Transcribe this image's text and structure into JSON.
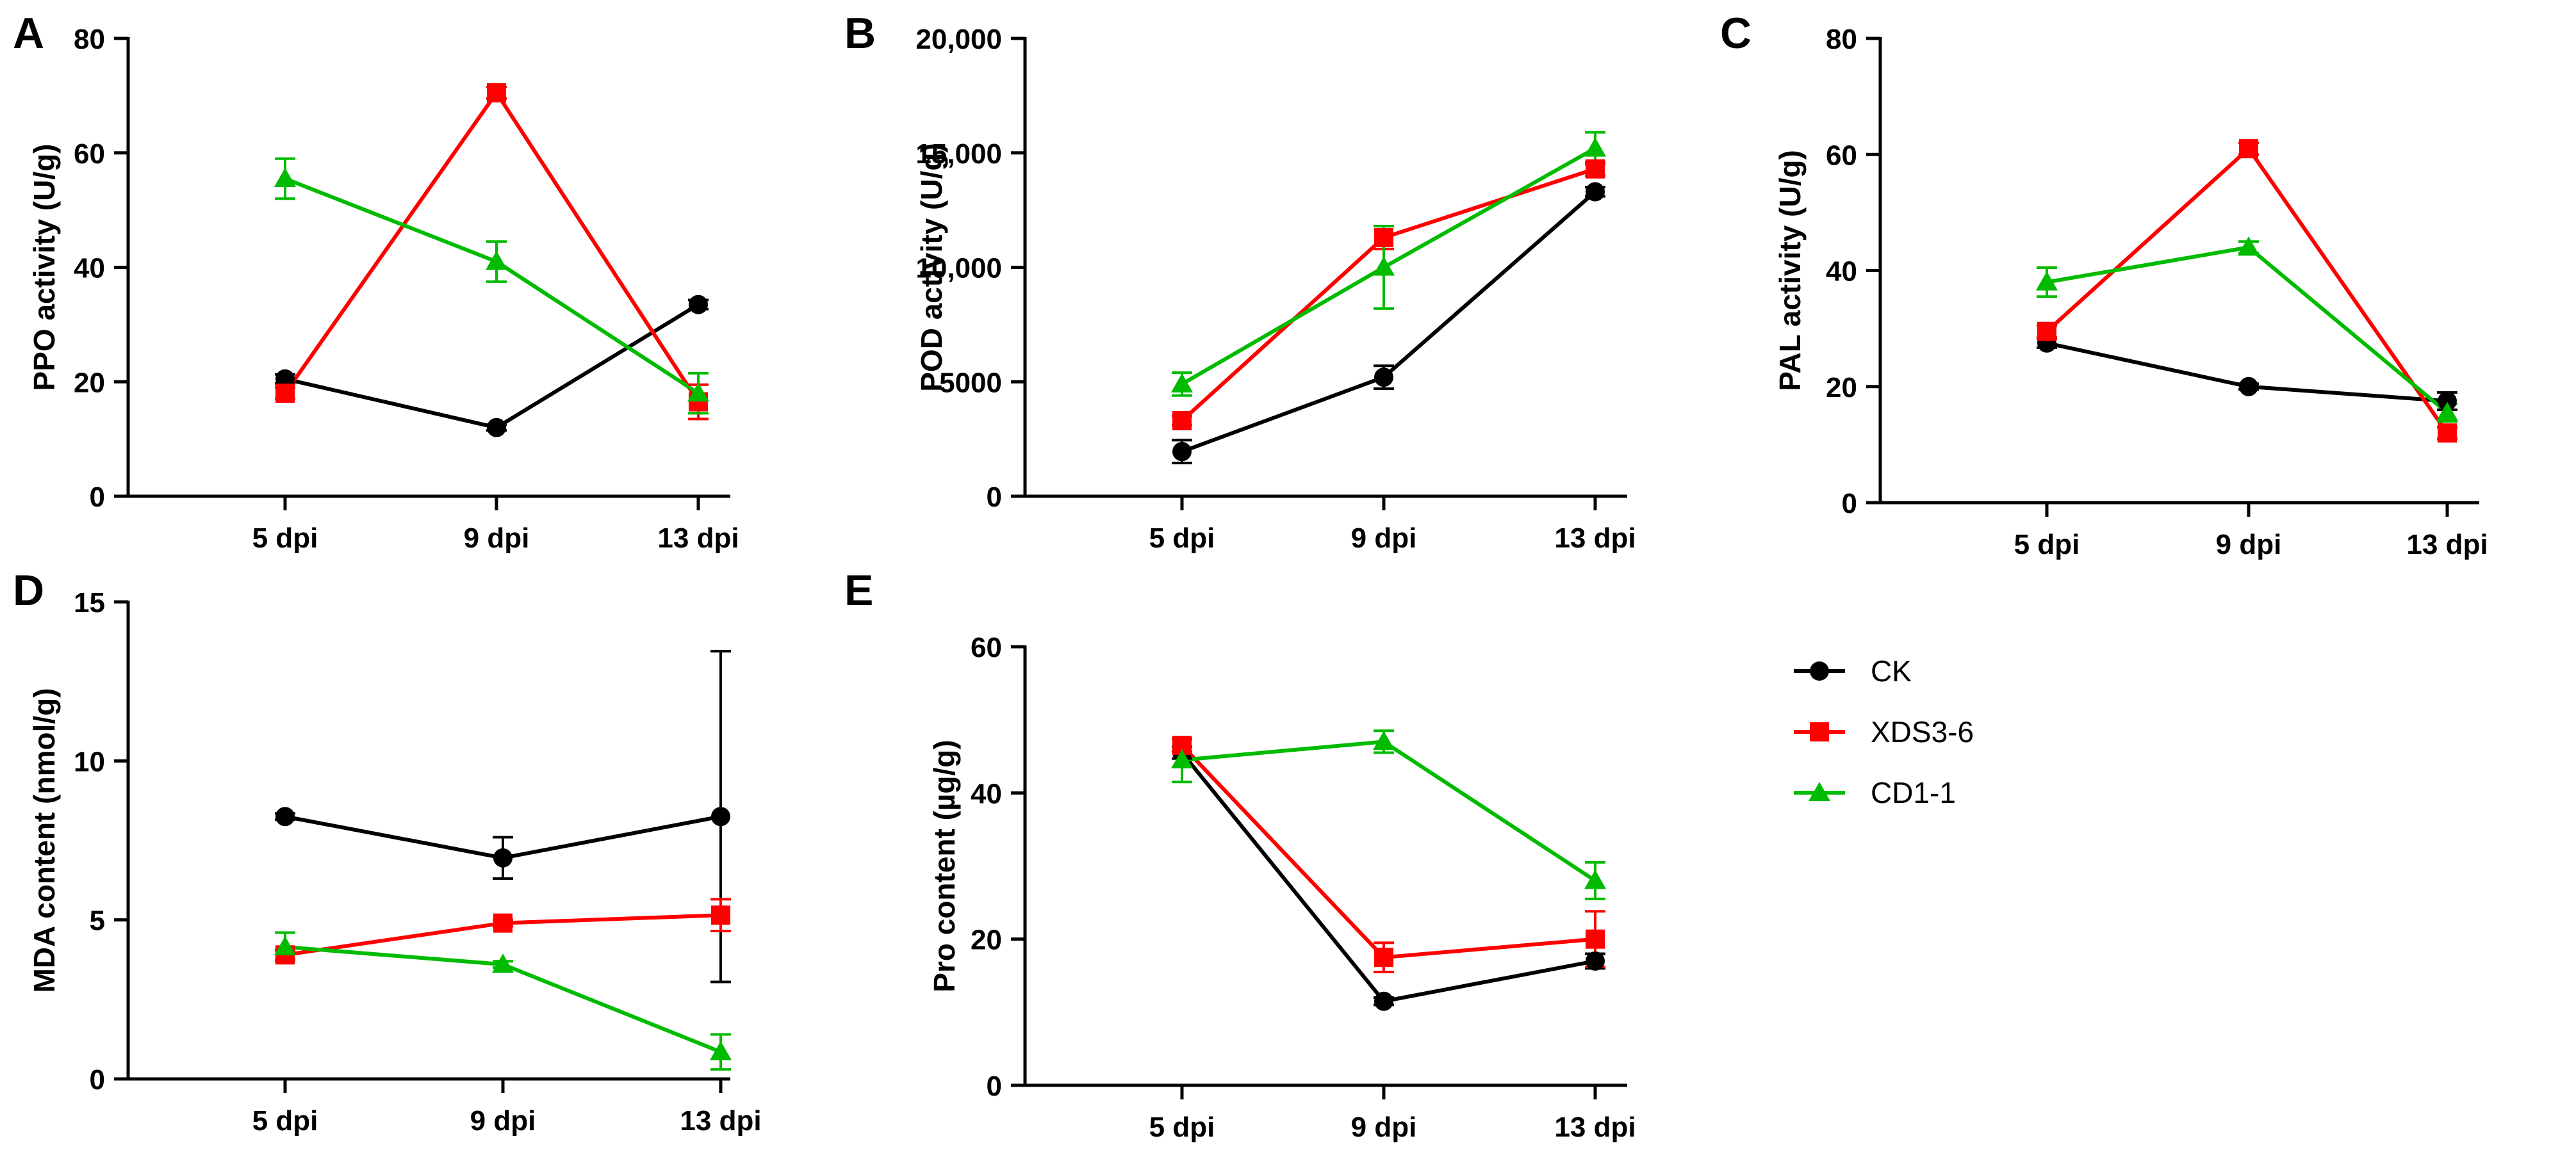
{
  "legend": {
    "entries": [
      {
        "name": "CK",
        "color": "#000000",
        "marker": "circle"
      },
      {
        "name": "XDS3-6",
        "color": "#ff0000",
        "marker": "square"
      },
      {
        "name": "CD1-1",
        "color": "#00bb00",
        "marker": "triangle"
      }
    ]
  },
  "chart_data": [
    {
      "panel": "A",
      "type": "line",
      "categories": [
        "5 dpi",
        "9 dpi",
        "13 dpi"
      ],
      "ylabel": "PPO activity (U/g)",
      "ylim": [
        0,
        80
      ],
      "yticks": [
        0,
        20,
        40,
        60,
        80
      ],
      "ytick_labels": [
        "0",
        "20",
        "40",
        "60",
        "80"
      ],
      "series": [
        {
          "name": "CK",
          "values": [
            20.5,
            12,
            33.5
          ],
          "errors": [
            0.8,
            0.5,
            0.8
          ]
        },
        {
          "name": "XDS3-6",
          "values": [
            18,
            70.5,
            16.5
          ],
          "errors": [
            1.0,
            1.0,
            3.0
          ]
        },
        {
          "name": "CD1-1",
          "values": [
            55.5,
            41,
            18
          ],
          "errors": [
            3.5,
            3.5,
            3.5
          ]
        }
      ]
    },
    {
      "panel": "B",
      "type": "line",
      "categories": [
        "5 dpi",
        "9 dpi",
        "13 dpi"
      ],
      "ylabel": "POD activity (U/g)",
      "ylim": [
        0,
        20000
      ],
      "yticks": [
        0,
        5000,
        10000,
        15000,
        20000
      ],
      "ytick_labels": [
        "0",
        "5000",
        "10,000",
        "15,000",
        "20,000"
      ],
      "series": [
        {
          "name": "CK",
          "values": [
            1950,
            5200,
            13300
          ],
          "errors": [
            500,
            500,
            200
          ]
        },
        {
          "name": "XDS3-6",
          "values": [
            3300,
            11300,
            14300
          ],
          "errors": [
            200,
            500,
            300
          ]
        },
        {
          "name": "CD1-1",
          "values": [
            4900,
            10000,
            15200
          ],
          "errors": [
            500,
            1800,
            700
          ]
        }
      ]
    },
    {
      "panel": "C",
      "type": "line",
      "categories": [
        "5 dpi",
        "9 dpi",
        "13 dpi"
      ],
      "ylabel": "PAL activity (U/g)",
      "ylim": [
        0,
        80
      ],
      "yticks": [
        0,
        20,
        40,
        60,
        80
      ],
      "ytick_labels": [
        "0",
        "20",
        "40",
        "60",
        "80"
      ],
      "series": [
        {
          "name": "CK",
          "values": [
            27.5,
            20,
            17.5
          ],
          "errors": [
            0.8,
            0.5,
            1.5
          ]
        },
        {
          "name": "XDS3-6",
          "values": [
            29.5,
            61,
            12
          ],
          "errors": [
            1.0,
            1.0,
            1.0
          ]
        },
        {
          "name": "CD1-1",
          "values": [
            38,
            44,
            15.5
          ],
          "errors": [
            2.5,
            1.0,
            1.5
          ]
        }
      ]
    },
    {
      "panel": "D",
      "type": "line",
      "categories": [
        "5 dpi",
        "9 dpi",
        "13 dpi"
      ],
      "ylabel": "MDA content (nmol/g)",
      "ylim": [
        0,
        15
      ],
      "yticks": [
        0,
        5,
        10,
        15
      ],
      "ytick_labels": [
        "0",
        "5",
        "10",
        "15"
      ],
      "series": [
        {
          "name": "CK",
          "values": [
            8.25,
            6.95,
            8.25
          ],
          "errors": [
            0.1,
            0.65,
            5.2
          ]
        },
        {
          "name": "XDS3-6",
          "values": [
            3.9,
            4.9,
            5.15
          ],
          "errors": [
            0.15,
            0.1,
            0.5
          ]
        },
        {
          "name": "CD1-1",
          "values": [
            4.15,
            3.6,
            0.85
          ],
          "errors": [
            0.45,
            0.1,
            0.55
          ]
        }
      ]
    },
    {
      "panel": "E",
      "type": "line",
      "categories": [
        "5 dpi",
        "9 dpi",
        "13 dpi"
      ],
      "ylabel": "Pro content (µg/g)",
      "ylim": [
        0,
        60
      ],
      "yticks": [
        0,
        20,
        40,
        60
      ],
      "ytick_labels": [
        "0",
        "20",
        "40",
        "60"
      ],
      "series": [
        {
          "name": "CK",
          "values": [
            45.5,
            11.5,
            17
          ],
          "errors": [
            0.8,
            0.5,
            1.0
          ]
        },
        {
          "name": "XDS3-6",
          "values": [
            46.5,
            17.5,
            20
          ],
          "errors": [
            0.8,
            2.0,
            3.8
          ]
        },
        {
          "name": "CD1-1",
          "values": [
            44.5,
            47,
            28
          ],
          "errors": [
            3.0,
            1.5,
            2.5
          ]
        }
      ]
    }
  ]
}
